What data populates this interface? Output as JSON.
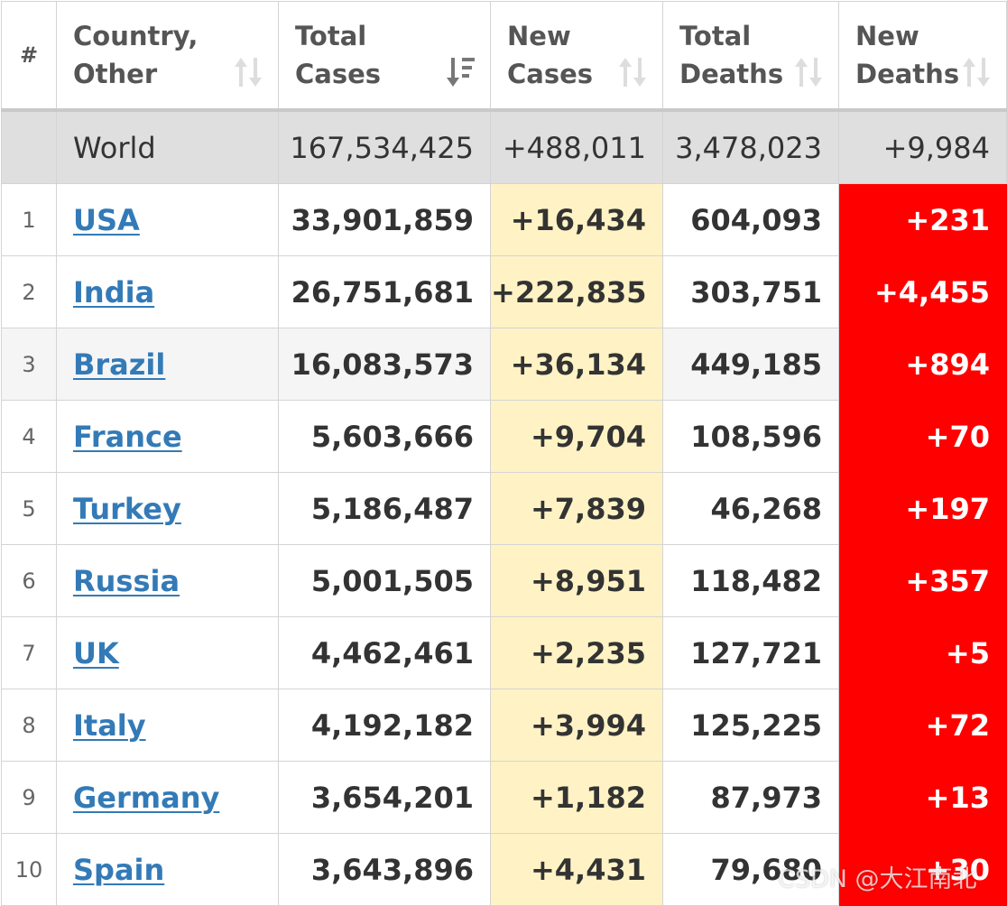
{
  "table": {
    "headers": [
      {
        "label": "#"
      },
      {
        "label": "Country, Other",
        "sort_icon": "sort-both-icon"
      },
      {
        "label": "Total Cases",
        "sort_icon": "sort-desc-active-icon"
      },
      {
        "label": "New Cases",
        "sort_icon": "sort-both-icon"
      },
      {
        "label": "Total Deaths",
        "sort_icon": "sort-both-icon"
      },
      {
        "label": "New Deaths",
        "sort_icon": "sort-both-icon"
      }
    ],
    "world": {
      "rank": "",
      "country": "World",
      "total_cases": "167,534,425",
      "new_cases": "+488,011",
      "total_deaths": "3,478,023",
      "new_deaths": "+9,984"
    },
    "rows": [
      {
        "rank": "1",
        "country": "USA",
        "total_cases": "33,901,859",
        "new_cases": "+16,434",
        "total_deaths": "604,093",
        "new_deaths": "+231"
      },
      {
        "rank": "2",
        "country": "India",
        "total_cases": "26,751,681",
        "new_cases": "+222,835",
        "total_deaths": "303,751",
        "new_deaths": "+4,455"
      },
      {
        "rank": "3",
        "country": "Brazil",
        "total_cases": "16,083,573",
        "new_cases": "+36,134",
        "total_deaths": "449,185",
        "new_deaths": "+894"
      },
      {
        "rank": "4",
        "country": "France",
        "total_cases": "5,603,666",
        "new_cases": "+9,704",
        "total_deaths": "108,596",
        "new_deaths": "+70"
      },
      {
        "rank": "5",
        "country": "Turkey",
        "total_cases": "5,186,487",
        "new_cases": "+7,839",
        "total_deaths": "46,268",
        "new_deaths": "+197"
      },
      {
        "rank": "6",
        "country": "Russia",
        "total_cases": "5,001,505",
        "new_cases": "+8,951",
        "total_deaths": "118,482",
        "new_deaths": "+357"
      },
      {
        "rank": "7",
        "country": "UK",
        "total_cases": "4,462,461",
        "new_cases": "+2,235",
        "total_deaths": "127,721",
        "new_deaths": "+5"
      },
      {
        "rank": "8",
        "country": "Italy",
        "total_cases": "4,192,182",
        "new_cases": "+3,994",
        "total_deaths": "125,225",
        "new_deaths": "+72"
      },
      {
        "rank": "9",
        "country": "Germany",
        "total_cases": "3,654,201",
        "new_cases": "+1,182",
        "total_deaths": "87,973",
        "new_deaths": "+13"
      },
      {
        "rank": "10",
        "country": "Spain",
        "total_cases": "3,643,896",
        "new_cases": "+4,431",
        "total_deaths": "79,680",
        "new_deaths": "+30"
      }
    ]
  },
  "watermark": "CSDN @大江南北",
  "colors": {
    "new_cases_highlight": "#fff3c5",
    "new_deaths_highlight": "#ff0000",
    "link": "#337ab7",
    "world_row": "#dfdfdf"
  }
}
